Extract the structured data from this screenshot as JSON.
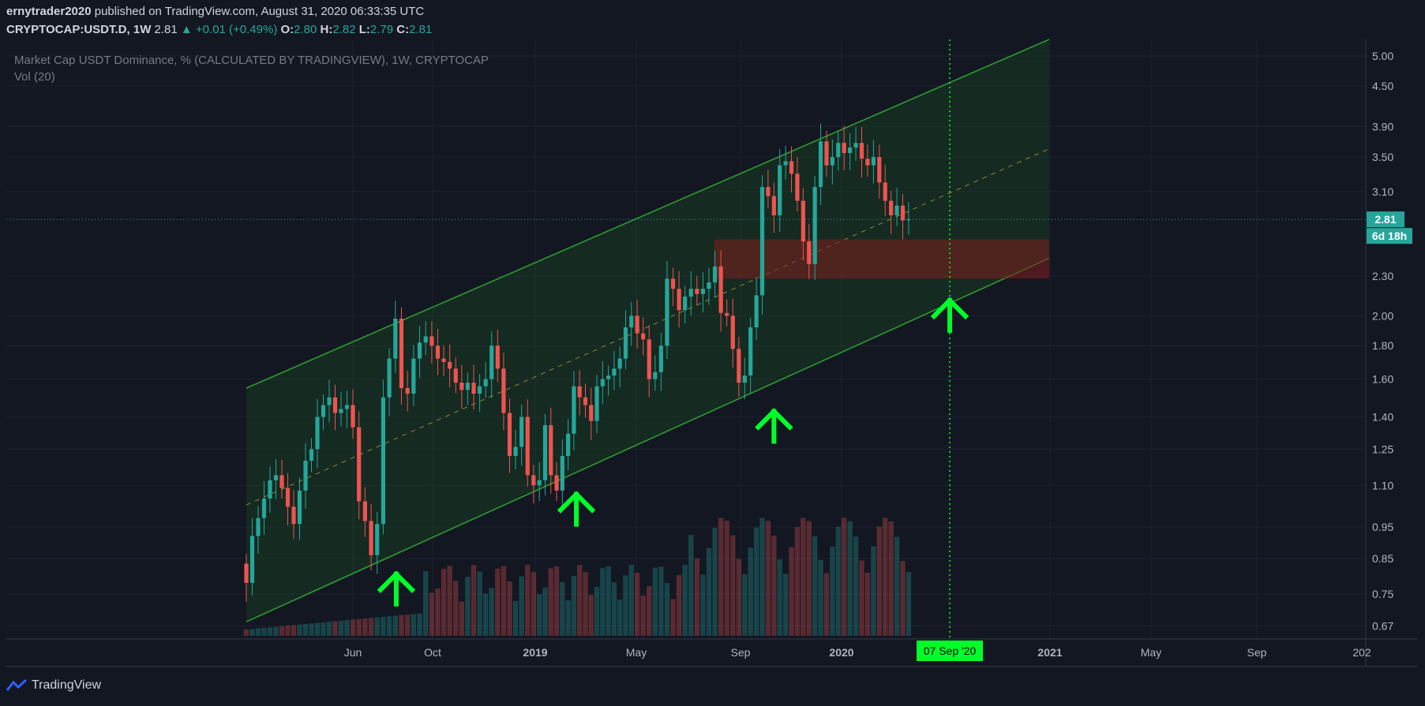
{
  "header": {
    "author": "ernytrader2020",
    "published_text": "published on TradingView.com, August 31, 2020 06:33:35 UTC",
    "symbol": "CRYPTOCAP:USDT.D, 1W",
    "last": "2.81",
    "change": "▲ +0.01 (+0.49%)",
    "o_label": "O:",
    "o": "2.80",
    "h_label": "H:",
    "h": "2.82",
    "l_label": "L:",
    "l": "2.79",
    "c_label": "C:",
    "c": "2.81"
  },
  "colors": {
    "background": "#131722",
    "up": "#26a69a",
    "down": "#ef5350",
    "channel": "#1b5e20",
    "zone": "#7f1d1d",
    "arrow": "#00ff2a",
    "cursor": "#00ff2a"
  },
  "footer": {
    "brand": "TradingView",
    "logo_icon": "tradingview-logo-icon"
  },
  "chart_data": {
    "type": "candlestick",
    "title": "Market Cap USDT Dominance, % (CALCULATED BY TRADINGVIEW), 1W, CRYPTOCAP",
    "indicator": "Vol (20)",
    "y_scale": "log",
    "ylim": [
      0.64,
      5.3
    ],
    "y_ticks": [
      "5.00",
      "4.50",
      "3.90",
      "3.50",
      "3.10",
      "2.30",
      "2.00",
      "1.80",
      "1.60",
      "1.40",
      "1.25",
      "1.10",
      "0.95",
      "0.85",
      "0.75",
      "0.67"
    ],
    "x_ticks": [
      "Jun",
      "Oct",
      "2019",
      "May",
      "Sep",
      "2020",
      "May",
      "2021",
      "May",
      "Sep",
      "202"
    ],
    "x_ticks_bold": [
      "2019",
      "2020",
      "2021"
    ],
    "last_price_label": "2.81",
    "countdown_label": "6d 18h",
    "cursor_date_label": "07 Sep '20",
    "anchors": [
      "2018-05-28",
      "2018-10-01",
      "2019-01-01",
      "2019-05-01",
      "2019-09-01",
      "2020-01-01",
      "2020-05-01",
      "2020-09-07",
      "2021-01-01",
      "2021-05-01",
      "2021-09-01",
      "2022-01-01"
    ],
    "series": [
      {
        "name": "price",
        "weekly_close": [
          0.78,
          0.92,
          0.98,
          1.05,
          1.12,
          1.14,
          1.09,
          1.02,
          0.96,
          1.08,
          1.2,
          1.25,
          1.4,
          1.46,
          1.5,
          1.42,
          1.44,
          1.46,
          1.35,
          1.04,
          0.97,
          0.86,
          0.96,
          1.5,
          1.72,
          1.98,
          1.55,
          1.52,
          1.72,
          1.82,
          1.86,
          1.8,
          1.72,
          1.7,
          1.66,
          1.58,
          1.54,
          1.58,
          1.52,
          1.56,
          1.6,
          1.8,
          1.66,
          1.42,
          1.22,
          1.26,
          1.4,
          1.14,
          1.1,
          1.12,
          1.36,
          1.14,
          1.08,
          1.22,
          1.32,
          1.56,
          1.5,
          1.46,
          1.38,
          1.56,
          1.6,
          1.62,
          1.66,
          1.72,
          1.92,
          2.0,
          1.88,
          1.84,
          1.6,
          1.64,
          1.8,
          2.28,
          2.2,
          2.04,
          2.14,
          2.2,
          2.16,
          2.2,
          2.25,
          2.38,
          2.02,
          2.0,
          1.78,
          1.58,
          1.62,
          1.92,
          2.15,
          3.15,
          3.05,
          2.85,
          3.4,
          3.45,
          3.3,
          3.0,
          2.6,
          2.4,
          3.15,
          3.7,
          3.4,
          3.5,
          3.68,
          3.55,
          3.62,
          3.68,
          3.48,
          3.4,
          3.5,
          3.2,
          3.0,
          2.85,
          2.95,
          2.8,
          2.81
        ]
      },
      {
        "name": "Vol (20)"
      }
    ],
    "annotations": {
      "channel": {
        "start_date": "2018-05-28",
        "end_date": "2020-12-31",
        "upper_start": 1.55,
        "upper_end": 5.3,
        "lower_start": 0.68,
        "lower_end": 2.45
      },
      "zone": {
        "start_date": "2019-12-01",
        "end_date": "2020-12-31",
        "low": 2.28,
        "high": 2.62
      },
      "arrows": [
        {
          "date": "2018-11-20",
          "value": 0.8
        },
        {
          "date": "2019-06-20",
          "value": 1.06
        },
        {
          "date": "2020-02-10",
          "value": 1.42
        },
        {
          "date": "2020-09-07",
          "value": 2.1
        }
      ]
    }
  }
}
